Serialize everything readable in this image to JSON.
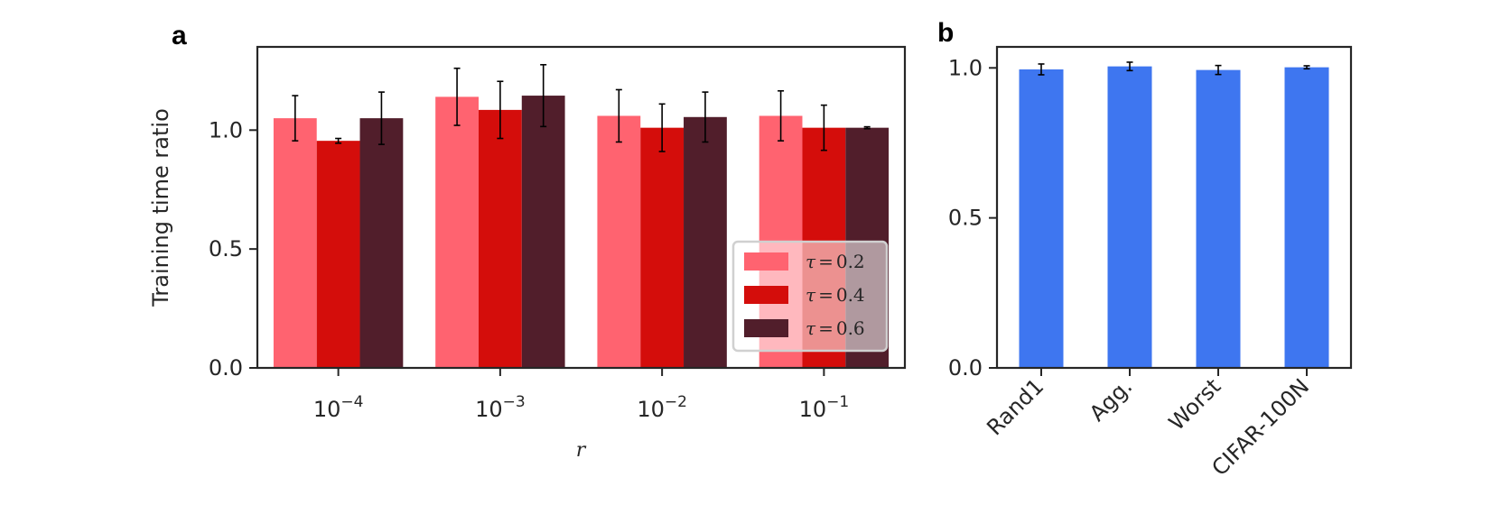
{
  "figure": {
    "panel_a_label": "a",
    "panel_b_label": "b"
  },
  "chart_data": [
    {
      "type": "bar",
      "panel": "a",
      "xlabel": "r",
      "ylabel": "Training time ratio",
      "ylim": [
        0,
        1.35
      ],
      "yticks": [
        0.0,
        0.5,
        1.0
      ],
      "ytick_labels": [
        "0.0",
        "0.5",
        "1.0"
      ],
      "categories": [
        {
          "base": "10",
          "exp": "−4"
        },
        {
          "base": "10",
          "exp": "−3"
        },
        {
          "base": "10",
          "exp": "−2"
        },
        {
          "base": "10",
          "exp": "−1"
        }
      ],
      "legend_position": "lower-right",
      "series": [
        {
          "name": "τ = 0.2",
          "sym": "τ",
          "eq": "=",
          "num": "0.2",
          "color": "#ff6370",
          "values": [
            1.05,
            1.14,
            1.06,
            1.06
          ],
          "errors": [
            0.095,
            0.12,
            0.11,
            0.105
          ]
        },
        {
          "name": "τ = 0.4",
          "sym": "τ",
          "eq": "=",
          "num": "0.4",
          "color": "#d40d0b",
          "values": [
            0.955,
            1.085,
            1.01,
            1.01
          ],
          "errors": [
            0.01,
            0.12,
            0.1,
            0.095
          ]
        },
        {
          "name": "τ = 0.6",
          "sym": "τ",
          "eq": "=",
          "num": "0.6",
          "color": "#511e2b",
          "values": [
            1.05,
            1.145,
            1.055,
            1.01
          ],
          "errors": [
            0.11,
            0.13,
            0.105,
            0.004
          ]
        }
      ]
    },
    {
      "type": "bar",
      "panel": "b",
      "ylim": [
        0,
        1.07
      ],
      "yticks": [
        0.0,
        0.5,
        1.0
      ],
      "ytick_labels": [
        "0.0",
        "0.5",
        "1.0"
      ],
      "categories": [
        "Rand1",
        "Agg.",
        "Worst",
        "CIFAR-100N"
      ],
      "color": "#3e76f0",
      "values": [
        0.995,
        1.005,
        0.993,
        1.002
      ],
      "errors": [
        0.018,
        0.014,
        0.015,
        0.005
      ]
    }
  ]
}
